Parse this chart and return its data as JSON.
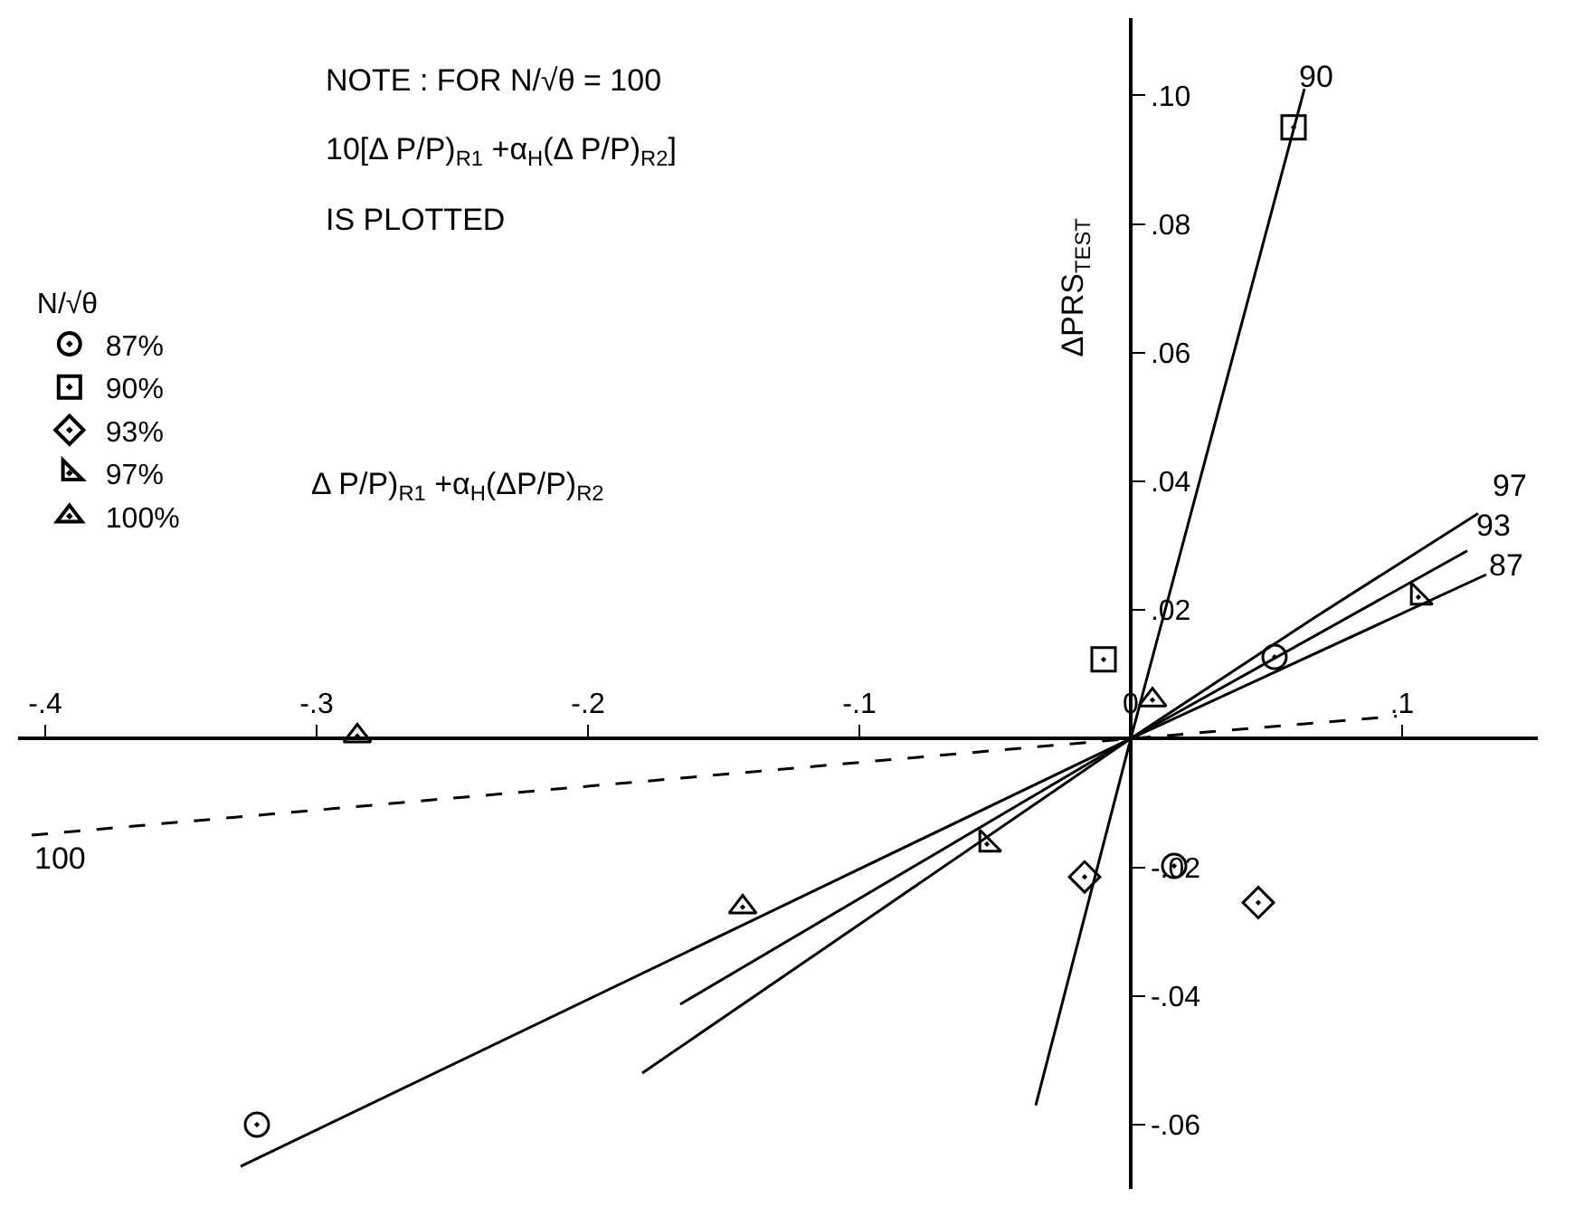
{
  "chart_data": {
    "type": "scatter",
    "xlabel": "Δ P/P)$_{R1}$ +α$_{H}$(ΔP/P)$_{R2}$",
    "ylabel": "ΔPRS$_{TEST}$",
    "legend_title": "N/√θ",
    "annotations": [
      "NOTE : FOR N/√θ = 100",
      "10[Δ P/P)$_{R1}$ +α$_{H}$(Δ P/P)$_{R2}$]",
      "IS PLOTTED",
      "97",
      "93",
      "87",
      "90",
      "100"
    ],
    "series": [
      {
        "name": "87%",
        "marker": "circle",
        "color": "#000000",
        "x": [
          0.053,
          0.016,
          -0.322
        ],
        "values": [
          0.0127,
          -0.0198,
          -0.06
        ]
      },
      {
        "name": "90%",
        "marker": "square",
        "color": "#000000",
        "x": [
          0.06,
          -0.01
        ],
        "values": [
          0.095,
          0.0123
        ]
      },
      {
        "name": "93%",
        "marker": "diamond",
        "color": "#000000",
        "x": [
          -0.017,
          0.047
        ],
        "values": [
          -0.0215,
          -0.0255
        ]
      },
      {
        "name": "97%",
        "color": "#000000",
        "x": [
          0.106,
          -0.053
        ],
        "values": [
          0.022,
          -0.0164
        ]
      },
      {
        "name": "100%",
        "marker": "triangle",
        "color": "#000000",
        "x": [
          0.008,
          -0.285,
          -0.143
        ],
        "values": [
          0.006,
          0.0004,
          -0.0262
        ]
      },
      {
        "type": "line",
        "color": "#000000",
        "line_style": "solid",
        "x": [
          -0.328,
          0,
          0.131
        ],
        "values": [
          -0.0665,
          0,
          0.0255
        ]
      },
      {
        "type": "line",
        "color": "#000000",
        "line_style": "solid",
        "x": [
          -0.035,
          0,
          0.064
        ],
        "values": [
          -0.057,
          0,
          0.101
        ]
      },
      {
        "type": "line",
        "color": "#000000",
        "line_style": "solid",
        "x": [
          -0.166,
          0,
          0.124
        ],
        "values": [
          -0.0413,
          0,
          0.0292
        ]
      },
      {
        "type": "line",
        "color": "#000000",
        "line_style": "solid",
        "x": [
          -0.18,
          0,
          0.068,
          0.128
        ],
        "values": [
          -0.052,
          0,
          0.0189,
          0.035
        ]
      },
      {
        "type": "line",
        "color": "#000000",
        "line_style": "dashed",
        "x": [
          -0.405,
          0,
          0.098
        ],
        "values": [
          -0.015,
          0,
          0.0035
        ]
      }
    ],
    "xlim": [
      -0.41,
      0.15
    ],
    "xticks": [
      {
        "value": -0.4,
        "label": "-.4"
      },
      {
        "value": -0.3,
        "label": "-.3"
      },
      {
        "value": -0.2,
        "label": "-.2"
      },
      {
        "value": -0.1,
        "label": "-.1"
      },
      0,
      {
        "value": 0.1,
        "label": ".1"
      }
    ],
    "ylim": [
      -0.07,
      0.112
    ],
    "yticks": [
      {
        "value": 0.1,
        "label": ".10"
      },
      {
        "value": 0.08,
        "label": ".08"
      },
      {
        "value": 0.06,
        "label": ".06"
      },
      {
        "value": 0.04,
        "label": ".04"
      },
      {
        "value": 0.02,
        "label": ".02"
      },
      {
        "value": -0.02,
        "label": "-.02"
      },
      {
        "value": -0.04,
        "label": "-.04"
      },
      {
        "value": -0.06,
        "label": "-.06"
      }
    ],
    "legend": "top left"
  }
}
